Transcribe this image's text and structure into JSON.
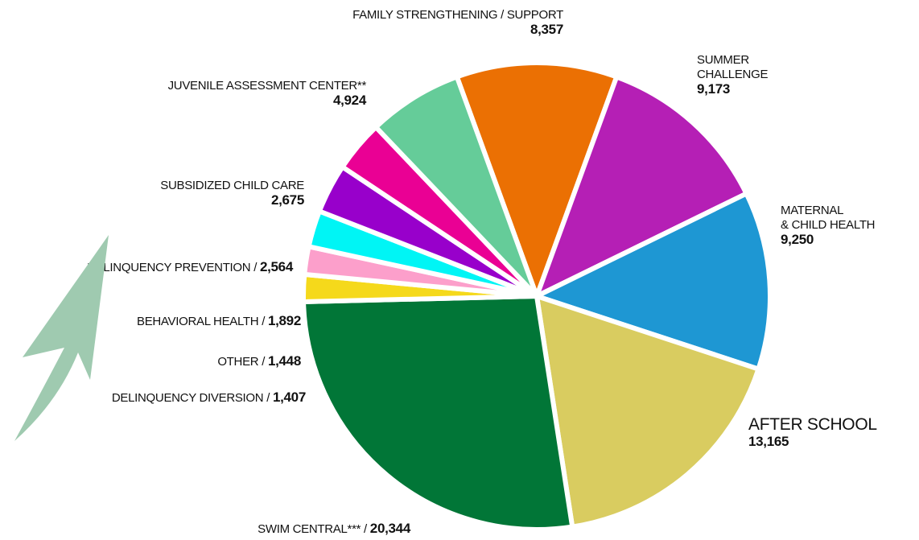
{
  "chart_data": {
    "type": "pie",
    "categories": [
      "FAMILY STRENGTHENING / SUPPORT",
      "SUMMER\nCHALLENGE",
      "MATERNAL\n& CHILD HEALTH",
      "AFTER SCHOOL",
      "SWIM CENTRAL***",
      "DELINQUENCY DIVERSION",
      "OTHER",
      "BEHAVIORAL HEALTH",
      "DELINQUENCY PREVENTION",
      "SUBSIDIZED CHILD CARE",
      "JUVENILE ASSESSMENT CENTER**"
    ],
    "values": [
      8357,
      9173,
      9250,
      13165,
      20344,
      1407,
      1448,
      1892,
      2564,
      2675,
      4924
    ],
    "value_labels": [
      "8,357",
      "9,173",
      "9,250",
      "13,165",
      "20,344",
      "1,407",
      "1,448",
      "1,892",
      "2,564",
      "2,675",
      "4,924"
    ],
    "colors": [
      "#eb7003",
      "#b51fb5",
      "#1e97d3",
      "#d9cc60",
      "#017637",
      "#f5d91b",
      "#fc9fcb",
      "#00f5f5",
      "#9800cb",
      "#ea0094",
      "#65cc99"
    ],
    "separator": "/"
  }
}
